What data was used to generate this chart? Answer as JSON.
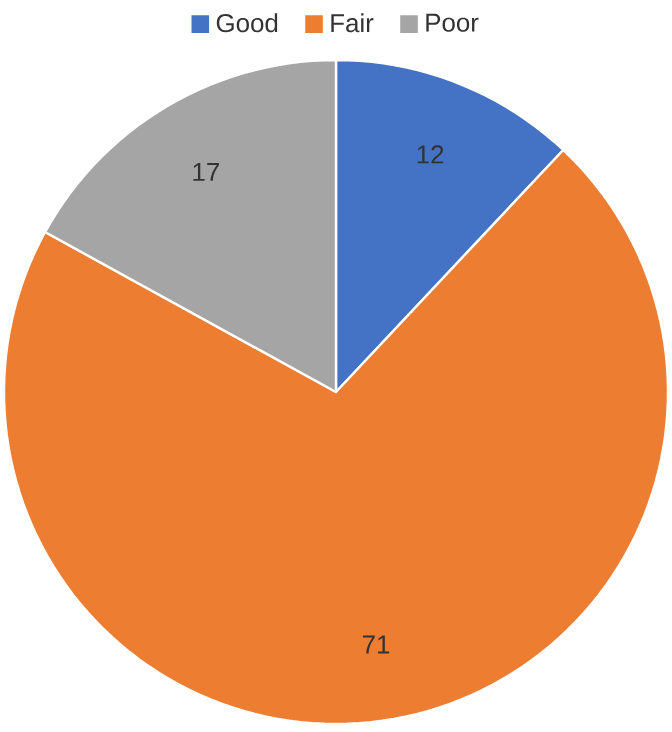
{
  "chart_data": {
    "type": "pie",
    "categories": [
      "Good",
      "Fair",
      "Poor"
    ],
    "values": [
      12,
      71,
      17
    ],
    "colors": [
      "#4472c4",
      "#ed7d31",
      "#a5a5a5"
    ],
    "data_labels": true,
    "legend": "top"
  }
}
